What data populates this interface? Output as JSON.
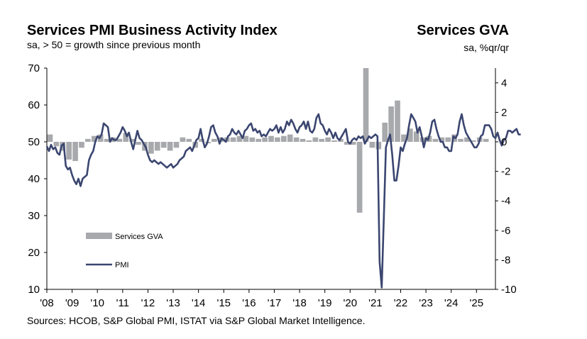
{
  "header": {
    "title": "Services PMI Business Activity Index",
    "subtitle": "sa, > 50 = growth since previous month",
    "right_title": "Services GVA",
    "right_subtitle": "sa, %qr/qr"
  },
  "source": "Sources: HCOB, S&P Global PMI, ISTAT via S&P Global Market Intelligence.",
  "colors": {
    "pmi": "#3b4670",
    "gva": "#a7a9ac"
  },
  "chart_data": {
    "type": "bar+line",
    "x_range": [
      2008.0,
      2025.75
    ],
    "x_tick_labels": [
      "'08",
      "'09",
      "'10",
      "'11",
      "'12",
      "'13",
      "'14",
      "'15",
      "'16",
      "'17",
      "'18",
      "'19",
      "'20",
      "'21",
      "'22",
      "'23",
      "'24",
      "'25"
    ],
    "x_tick_years": [
      2008,
      2009,
      2010,
      2011,
      2012,
      2013,
      2014,
      2015,
      2016,
      2017,
      2018,
      2019,
      2020,
      2021,
      2022,
      2023,
      2024,
      2025
    ],
    "y_left": {
      "range": [
        10,
        70
      ],
      "ticks": [
        10,
        20,
        30,
        40,
        50,
        60,
        70
      ]
    },
    "y_right": {
      "range": [
        -10,
        5
      ],
      "ticks": [
        -10,
        -8,
        -6,
        -4,
        -2,
        0,
        2,
        4
      ]
    },
    "legend": [
      "Services GVA",
      "PMI"
    ],
    "series": [
      {
        "name": "Services GVA",
        "axis": "right",
        "type": "bar",
        "quarters": [
          2008.0,
          2008.25,
          2008.5,
          2008.75,
          2009.0,
          2009.25,
          2009.5,
          2009.75,
          2010.0,
          2010.25,
          2010.5,
          2010.75,
          2011.0,
          2011.25,
          2011.5,
          2011.75,
          2012.0,
          2012.25,
          2012.5,
          2012.75,
          2013.0,
          2013.25,
          2013.5,
          2013.75,
          2014.0,
          2014.25,
          2014.5,
          2014.75,
          2015.0,
          2015.25,
          2015.5,
          2015.75,
          2016.0,
          2016.25,
          2016.5,
          2016.75,
          2017.0,
          2017.25,
          2017.5,
          2017.75,
          2018.0,
          2018.25,
          2018.5,
          2018.75,
          2019.0,
          2019.25,
          2019.5,
          2019.75,
          2020.0,
          2020.25,
          2020.5,
          2020.75,
          2021.0,
          2021.25,
          2021.5,
          2021.75,
          2022.0,
          2022.25,
          2022.5,
          2022.75,
          2023.0,
          2023.25,
          2023.5,
          2023.75,
          2024.0,
          2024.25,
          2024.5,
          2024.75,
          2025.0,
          2025.25
        ],
        "values": [
          0.5,
          -0.3,
          -0.6,
          -1.2,
          -1.3,
          -0.4,
          0.2,
          0.4,
          0.5,
          0.2,
          0.3,
          0.2,
          0.6,
          0.2,
          -0.2,
          -0.6,
          -0.8,
          -0.6,
          -0.4,
          -0.6,
          -0.4,
          0.3,
          0.2,
          -0.4,
          0.2,
          -0.1,
          0.2,
          0.3,
          0.3,
          0.3,
          0.4,
          0.4,
          0.3,
          0.2,
          0.3,
          0.4,
          0.3,
          0.4,
          0.5,
          0.3,
          0.2,
          0.1,
          0.3,
          0.2,
          0.3,
          0.1,
          0.2,
          -0.2,
          -0.2,
          -4.8,
          5.5,
          -0.4,
          -0.5,
          1.3,
          2.4,
          2.8,
          0.5,
          0.9,
          0.7,
          0.3,
          0.4,
          0.2,
          0.3,
          0.3,
          0.5,
          0.2,
          0.3,
          0.1,
          0.3,
          0.2
        ]
      },
      {
        "name": "PMI",
        "axis": "left",
        "type": "line",
        "monthly_start": 2008.0,
        "values": [
          48.8,
          47.5,
          49.2,
          48.0,
          48.5,
          47.0,
          46.5,
          49.0,
          49.5,
          43.5,
          42.5,
          43.0,
          41.0,
          39.5,
          38.5,
          40.0,
          38.0,
          40.0,
          40.5,
          41.0,
          45.0,
          46.5,
          47.5,
          50.0,
          51.5,
          51.0,
          52.0,
          55.0,
          54.5,
          54.0,
          50.0,
          51.0,
          50.5,
          50.5,
          51.5,
          52.5,
          54.0,
          53.0,
          51.5,
          52.5,
          50.0,
          48.0,
          50.5,
          53.0,
          51.0,
          50.5,
          49.5,
          48.5,
          46.5,
          45.0,
          44.5,
          45.0,
          44.5,
          44.0,
          44.5,
          44.0,
          43.5,
          43.0,
          43.5,
          44.0,
          43.0,
          43.5,
          44.0,
          45.0,
          45.5,
          46.0,
          47.5,
          48.0,
          48.5,
          47.5,
          49.0,
          50.5,
          51.0,
          53.5,
          50.5,
          48.5,
          49.5,
          51.5,
          54.0,
          54.5,
          52.5,
          51.5,
          49.5,
          51.0,
          50.5,
          50.0,
          51.5,
          52.0,
          53.5,
          52.5,
          52.0,
          53.0,
          52.0,
          51.0,
          53.0,
          53.5,
          54.5,
          55.0,
          53.0,
          53.5,
          52.5,
          53.0,
          51.5,
          52.0,
          51.5,
          52.5,
          53.5,
          53.0,
          53.5,
          54.5,
          52.5,
          54.0,
          52.5,
          53.5,
          55.5,
          54.5,
          56.0,
          55.0,
          53.5,
          52.5,
          54.0,
          54.5,
          55.5,
          53.5,
          55.5,
          53.0,
          52.5,
          53.5,
          56.5,
          57.5,
          55.0,
          54.5,
          53.0,
          52.0,
          53.5,
          52.5,
          51.0,
          52.5,
          51.0,
          50.5,
          51.5,
          52.5,
          53.5,
          50.0,
          49.5,
          50.5,
          51.0,
          50.5,
          51.5,
          51.0,
          51.5,
          49.5,
          50.5,
          51.5,
          51.0,
          51.5,
          52.0,
          51.5,
          17.5,
          10.5,
          29.0,
          48.5,
          50.5,
          52.0,
          46.5,
          39.5,
          39.5,
          43.5,
          48.5,
          47.5,
          49.5,
          51.0,
          54.5,
          57.5,
          56.5,
          55.5,
          52.5,
          54.0,
          51.5,
          48.5,
          51.0,
          50.5,
          52.5,
          55.5,
          56.0,
          53.5,
          51.5,
          50.0,
          50.0,
          48.5,
          48.5,
          47.5,
          47.5,
          51.5,
          51.0,
          52.0,
          55.5,
          57.5,
          54.5,
          52.5,
          51.5,
          50.5,
          49.5,
          48.5,
          48.5,
          49.5,
          51.5,
          52.0,
          54.5,
          54.5,
          54.5,
          53.5,
          51.5,
          51.0,
          52.5,
          50.5,
          49.0,
          50.5,
          51.0,
          53.0,
          53.0,
          52.5,
          53.0,
          53.5,
          52.0,
          52.0
        ]
      }
    ]
  }
}
